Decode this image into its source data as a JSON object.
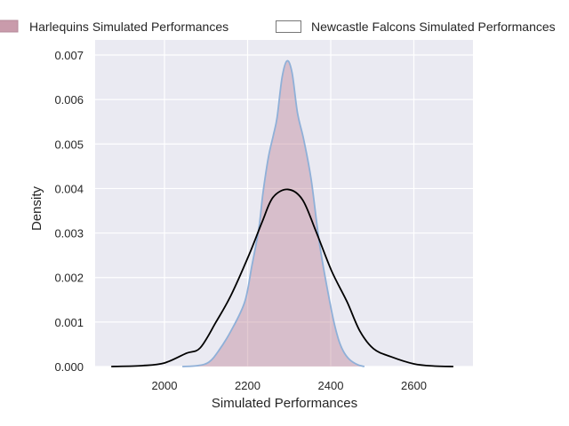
{
  "chart_data": {
    "type": "area",
    "title": "",
    "xlabel": "Simulated Performances",
    "ylabel": "Density",
    "xlim": [
      1855,
      2735
    ],
    "ylim": [
      0,
      0.00725
    ],
    "xticks": [
      2000,
      2200,
      2400,
      2600
    ],
    "yticks": [
      0,
      0.001,
      0.002,
      0.003,
      0.004,
      0.005,
      0.006,
      0.007
    ],
    "ytick_labels": [
      "0.000",
      "0.001",
      "0.002",
      "0.003",
      "0.004",
      "0.005",
      "0.006",
      "0.007"
    ],
    "xtick_labels": [
      "2000",
      "2200",
      "2400",
      "2600"
    ],
    "grid": true,
    "legend_placement": "top-outside",
    "series": [
      {
        "name": "Harlequins Simulated Performances",
        "style": "filled",
        "fill": "#c08a9c",
        "line": "#8fb0d8",
        "x": [
          2043,
          2080,
          2107,
          2130,
          2160,
          2193,
          2210,
          2227,
          2237,
          2250,
          2262,
          2271,
          2283,
          2295,
          2307,
          2320,
          2335,
          2353,
          2374,
          2402,
          2417,
          2430,
          2445,
          2465,
          2481
        ],
        "y": [
          0,
          2e-05,
          0.0001,
          0.00035,
          0.0008,
          0.00145,
          0.00225,
          0.0031,
          0.0039,
          0.0047,
          0.0052,
          0.0056,
          0.0065,
          0.00687,
          0.0066,
          0.0057,
          0.0051,
          0.0042,
          0.0027,
          0.00125,
          0.00066,
          0.00035,
          0.00016,
          4e-05,
          0
        ]
      },
      {
        "name": "Newcastle Falcons Simulated Performances",
        "style": "line",
        "fill": "none",
        "line": "#000000",
        "x": [
          1872,
          1947,
          2000,
          2053,
          2086,
          2124,
          2160,
          2203,
          2235,
          2261,
          2297,
          2332,
          2364,
          2402,
          2439,
          2470,
          2503,
          2545,
          2600,
          2650,
          2695
        ],
        "y": [
          0,
          2e-05,
          8e-05,
          0.0003,
          0.00042,
          0.001,
          0.0016,
          0.0025,
          0.00325,
          0.0038,
          0.00398,
          0.00375,
          0.00305,
          0.00215,
          0.00146,
          0.0008,
          0.0004,
          0.00022,
          6e-05,
          1e-05,
          0
        ]
      }
    ]
  }
}
